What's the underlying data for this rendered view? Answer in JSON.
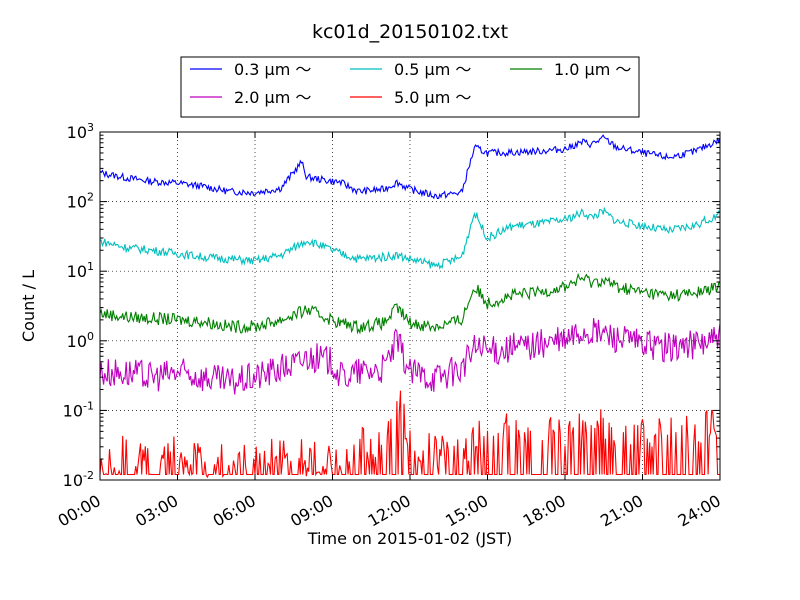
{
  "chart_data": {
    "type": "line",
    "title": "kc01d_20150102.txt",
    "xlabel": "Time on 2015-01-02 (JST)",
    "ylabel": "Count / L",
    "yscale": "log",
    "xlim": [
      "00:00",
      "24:00"
    ],
    "ylim": [
      0.01,
      1000
    ],
    "grid": true,
    "legend_position": "top-center, above plot",
    "x_ticks": [
      "00:00",
      "03:00",
      "06:00",
      "09:00",
      "12:00",
      "15:00",
      "18:00",
      "21:00",
      "24:00"
    ],
    "y_ticks": [
      {
        "base": "10",
        "exp": "-2"
      },
      {
        "base": "10",
        "exp": "-1"
      },
      {
        "base": "10",
        "exp": "0"
      },
      {
        "base": "10",
        "exp": "1"
      },
      {
        "base": "10",
        "exp": "2"
      },
      {
        "base": "10",
        "exp": "3"
      }
    ],
    "x_hours": [
      0,
      1,
      2,
      3,
      4,
      5,
      6,
      7,
      7.8,
      8,
      9,
      9.3,
      10,
      11,
      11.5,
      12,
      13,
      14,
      14.5,
      15,
      16,
      17,
      18,
      18.7,
      19,
      19.5,
      20,
      21,
      22,
      23,
      24
    ],
    "series": [
      {
        "name": "0.3 μm ～",
        "color": "#0000ff",
        "values": [
          260,
          220,
          195,
          185,
          165,
          140,
          135,
          155,
          370,
          225,
          195,
          190,
          140,
          150,
          190,
          150,
          120,
          135,
          600,
          500,
          510,
          530,
          570,
          720,
          660,
          820,
          600,
          500,
          430,
          520,
          780
        ]
      },
      {
        "name": "0.5 μm ～",
        "color": "#00bfbf",
        "values": [
          27,
          22,
          20,
          18,
          16,
          15,
          14,
          17,
          25,
          28,
          20,
          18,
          15,
          16,
          17,
          15,
          12,
          16,
          70,
          30,
          45,
          48,
          55,
          70,
          60,
          72,
          52,
          45,
          38,
          45,
          65
        ]
      },
      {
        "name": "1.0 μm ～",
        "color": "#008000",
        "values": [
          2.5,
          2.2,
          2.1,
          2.0,
          1.9,
          1.6,
          1.6,
          2.0,
          2.6,
          2.8,
          2.0,
          1.8,
          1.6,
          1.8,
          3.0,
          1.8,
          1.6,
          2.0,
          6.0,
          3.5,
          4.5,
          5.0,
          6.0,
          8.0,
          7.0,
          7.5,
          6.0,
          5.0,
          4.5,
          4.8,
          6.0
        ]
      },
      {
        "name": "2.0 μm ～",
        "color": "#bf00bf",
        "values": [
          0.35,
          0.35,
          0.3,
          0.35,
          0.3,
          0.25,
          0.3,
          0.4,
          0.5,
          0.6,
          0.5,
          0.3,
          0.35,
          0.4,
          1.0,
          0.35,
          0.3,
          0.4,
          0.8,
          0.7,
          0.8,
          0.9,
          1.0,
          1.4,
          1.3,
          1.3,
          1.1,
          0.9,
          0.8,
          0.9,
          1.1
        ]
      },
      {
        "name": "5.0 μm ～",
        "color": "#ff0000",
        "values": [
          0.015,
          0.02,
          0.015,
          0.02,
          0.015,
          0.015,
          0.015,
          0.02,
          0.02,
          0.015,
          0.02,
          0.015,
          0.025,
          0.03,
          0.15,
          0.03,
          0.02,
          0.02,
          0.03,
          0.05,
          0.04,
          0.045,
          0.04,
          0.05,
          0.04,
          0.05,
          0.04,
          0.035,
          0.04,
          0.045,
          0.06
        ]
      }
    ]
  }
}
